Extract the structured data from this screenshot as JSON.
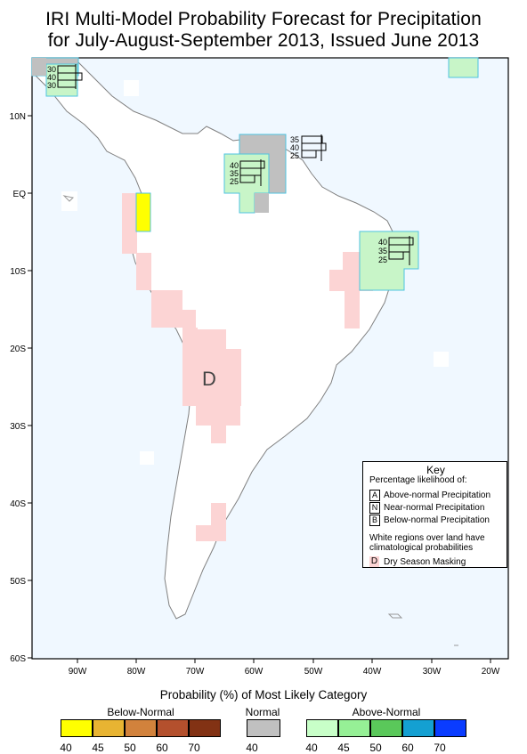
{
  "title_line1": "IRI Multi-Model Probability Forecast for Precipitation",
  "title_line2": "for July-August-September 2013, Issued June 2013",
  "map": {
    "lat_labels": [
      "10N",
      "EQ",
      "10S",
      "20S",
      "30S",
      "40S",
      "50S",
      "60S"
    ],
    "lon_labels": [
      "90W",
      "80W",
      "70W",
      "60W",
      "50W",
      "40W",
      "30W",
      "20W"
    ],
    "dry_label": "D",
    "boxes": [
      {
        "id": "nw",
        "values": [
          "30",
          "40",
          "30"
        ]
      },
      {
        "id": "n",
        "values": [
          "35",
          "40",
          "25"
        ]
      },
      {
        "id": "amazon",
        "values": [
          "40",
          "35",
          "25"
        ]
      },
      {
        "id": "ne",
        "values": [
          "40",
          "35",
          "25"
        ]
      }
    ]
  },
  "key": {
    "title": "Key",
    "subtitle": "Percentage likelihood of:",
    "rows": [
      {
        "letter": "A",
        "text": "Above-normal Precipitation"
      },
      {
        "letter": "N",
        "text": "Near-normal Precipitation"
      },
      {
        "letter": "B",
        "text": "Below-normal Precipitation"
      }
    ],
    "note": "White regions over land have climatological probabilities",
    "dry_letter": "D",
    "dry_text": "Dry Season Masking"
  },
  "legend": {
    "title": "Probability (%) of Most Likely Category",
    "below_title": "Below-Normal",
    "normal_title": "Normal",
    "above_title": "Above-Normal",
    "below_ticks": [
      "40",
      "45",
      "50",
      "60",
      "70"
    ],
    "normal_ticks": [
      "40"
    ],
    "above_ticks": [
      "40",
      "45",
      "50",
      "60",
      "70"
    ],
    "colors": {
      "below": [
        "#ffff00",
        "#e8b432",
        "#d2823c",
        "#b4502d",
        "#823214"
      ],
      "normal": "#c0c0c0",
      "above": [
        "#c8ffc8",
        "#96f096",
        "#5ac85a",
        "#14a0d2",
        "#0a3cff"
      ],
      "ocean": "#f0f8ff",
      "dry": "#fcd4d4"
    }
  }
}
